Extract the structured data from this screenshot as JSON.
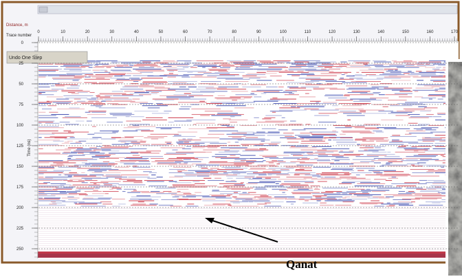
{
  "window": {
    "distance_label": "Distance, m",
    "undo_button": "Undo One Step"
  },
  "trace_axis": {
    "label": "Trace number",
    "ticks": [
      0,
      10,
      20,
      30,
      40,
      50,
      60,
      70,
      80,
      90,
      100,
      110,
      120,
      130,
      140,
      150,
      160,
      170
    ],
    "lim": [
      0,
      170
    ]
  },
  "time_axis": {
    "label": "Time (ns)",
    "ticks": [
      0,
      25,
      50,
      75,
      100,
      125,
      150,
      175,
      200,
      225,
      250
    ],
    "lim": [
      0,
      250
    ]
  },
  "annotation": {
    "label": "Qanat"
  }
}
